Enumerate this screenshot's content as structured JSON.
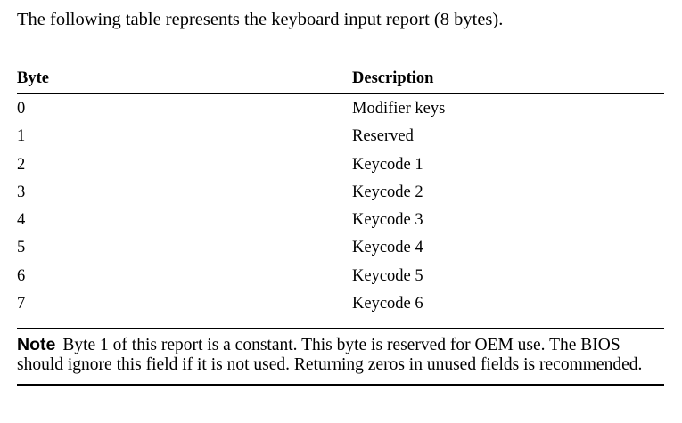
{
  "intro": "The following table represents the keyboard input report (8 bytes).",
  "table": {
    "headers": [
      "Byte",
      "Description"
    ],
    "rows": [
      [
        "0",
        "Modifier keys"
      ],
      [
        "1",
        "Reserved"
      ],
      [
        "2",
        "Keycode 1"
      ],
      [
        "3",
        "Keycode 2"
      ],
      [
        "4",
        "Keycode 3"
      ],
      [
        "5",
        "Keycode 4"
      ],
      [
        "6",
        "Keycode 5"
      ],
      [
        "7",
        "Keycode 6"
      ]
    ]
  },
  "note": {
    "label": "Note",
    "text": "Byte 1 of this report is a constant. This byte is reserved for OEM use. The BIOS should ignore this field if it is not used. Returning zeros in unused fields is recommended."
  }
}
